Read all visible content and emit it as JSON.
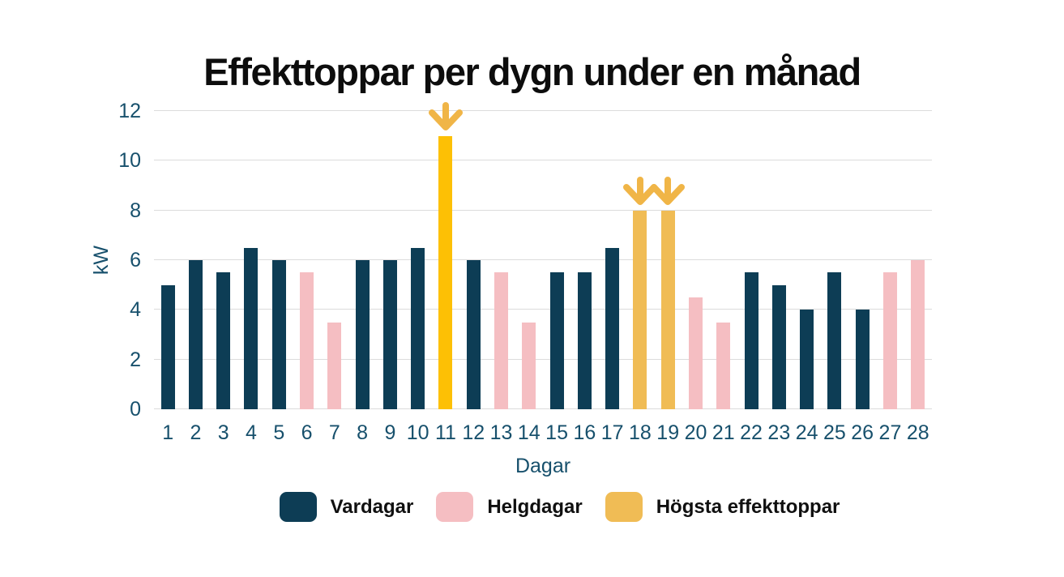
{
  "colors": {
    "weekday": "#0D3D55",
    "weekend": "#F5BEC2",
    "peak_bright": "#FDC005",
    "peak_soft": "#F0BC55",
    "arrow": "#F0B547",
    "axis_text": "#17506C",
    "grid": "#DCDCDC",
    "title": "#0D0D0D",
    "background": "#FFFFFF"
  },
  "chart_data": {
    "type": "bar",
    "title": "Effekttoppar per dygn under en månad",
    "xlabel": "Dagar",
    "ylabel": "kW",
    "ylim": [
      0,
      12
    ],
    "yticks": [
      0,
      2,
      4,
      6,
      8,
      10,
      12
    ],
    "grid": "horizontal",
    "legend_position": "bottom",
    "categories": [
      1,
      2,
      3,
      4,
      5,
      6,
      7,
      8,
      9,
      10,
      11,
      12,
      13,
      14,
      15,
      16,
      17,
      18,
      19,
      20,
      21,
      22,
      23,
      24,
      25,
      26,
      27,
      28
    ],
    "bars": [
      {
        "day": 1,
        "value": 5,
        "kind": "weekday"
      },
      {
        "day": 2,
        "value": 6,
        "kind": "weekday"
      },
      {
        "day": 3,
        "value": 5.5,
        "kind": "weekday"
      },
      {
        "day": 4,
        "value": 6.5,
        "kind": "weekday"
      },
      {
        "day": 5,
        "value": 6,
        "kind": "weekday"
      },
      {
        "day": 6,
        "value": 5.5,
        "kind": "weekend"
      },
      {
        "day": 7,
        "value": 3.5,
        "kind": "weekend"
      },
      {
        "day": 8,
        "value": 6,
        "kind": "weekday"
      },
      {
        "day": 9,
        "value": 6,
        "kind": "weekday"
      },
      {
        "day": 10,
        "value": 6.5,
        "kind": "weekday"
      },
      {
        "day": 11,
        "value": 11,
        "kind": "peak_bright",
        "arrow": true
      },
      {
        "day": 12,
        "value": 6,
        "kind": "weekday"
      },
      {
        "day": 13,
        "value": 5.5,
        "kind": "weekend"
      },
      {
        "day": 14,
        "value": 3.5,
        "kind": "weekend"
      },
      {
        "day": 15,
        "value": 5.5,
        "kind": "weekday"
      },
      {
        "day": 16,
        "value": 5.5,
        "kind": "weekday"
      },
      {
        "day": 17,
        "value": 6.5,
        "kind": "weekday"
      },
      {
        "day": 18,
        "value": 8,
        "kind": "peak_soft",
        "arrow": true
      },
      {
        "day": 19,
        "value": 8,
        "kind": "peak_soft",
        "arrow": true
      },
      {
        "day": 20,
        "value": 4.5,
        "kind": "weekend"
      },
      {
        "day": 21,
        "value": 3.5,
        "kind": "weekend"
      },
      {
        "day": 22,
        "value": 5.5,
        "kind": "weekday"
      },
      {
        "day": 23,
        "value": 5,
        "kind": "weekday"
      },
      {
        "day": 24,
        "value": 4,
        "kind": "weekday"
      },
      {
        "day": 25,
        "value": 5.5,
        "kind": "weekday"
      },
      {
        "day": 26,
        "value": 4,
        "kind": "weekday"
      },
      {
        "day": 27,
        "value": 5.5,
        "kind": "weekend"
      },
      {
        "day": 28,
        "value": 6,
        "kind": "weekend"
      }
    ],
    "legend": [
      {
        "label": "Vardagar",
        "color_key": "weekday"
      },
      {
        "label": "Helgdagar",
        "color_key": "weekend"
      },
      {
        "label": "Högsta effekttoppar",
        "color_key": "peak_soft"
      }
    ]
  }
}
